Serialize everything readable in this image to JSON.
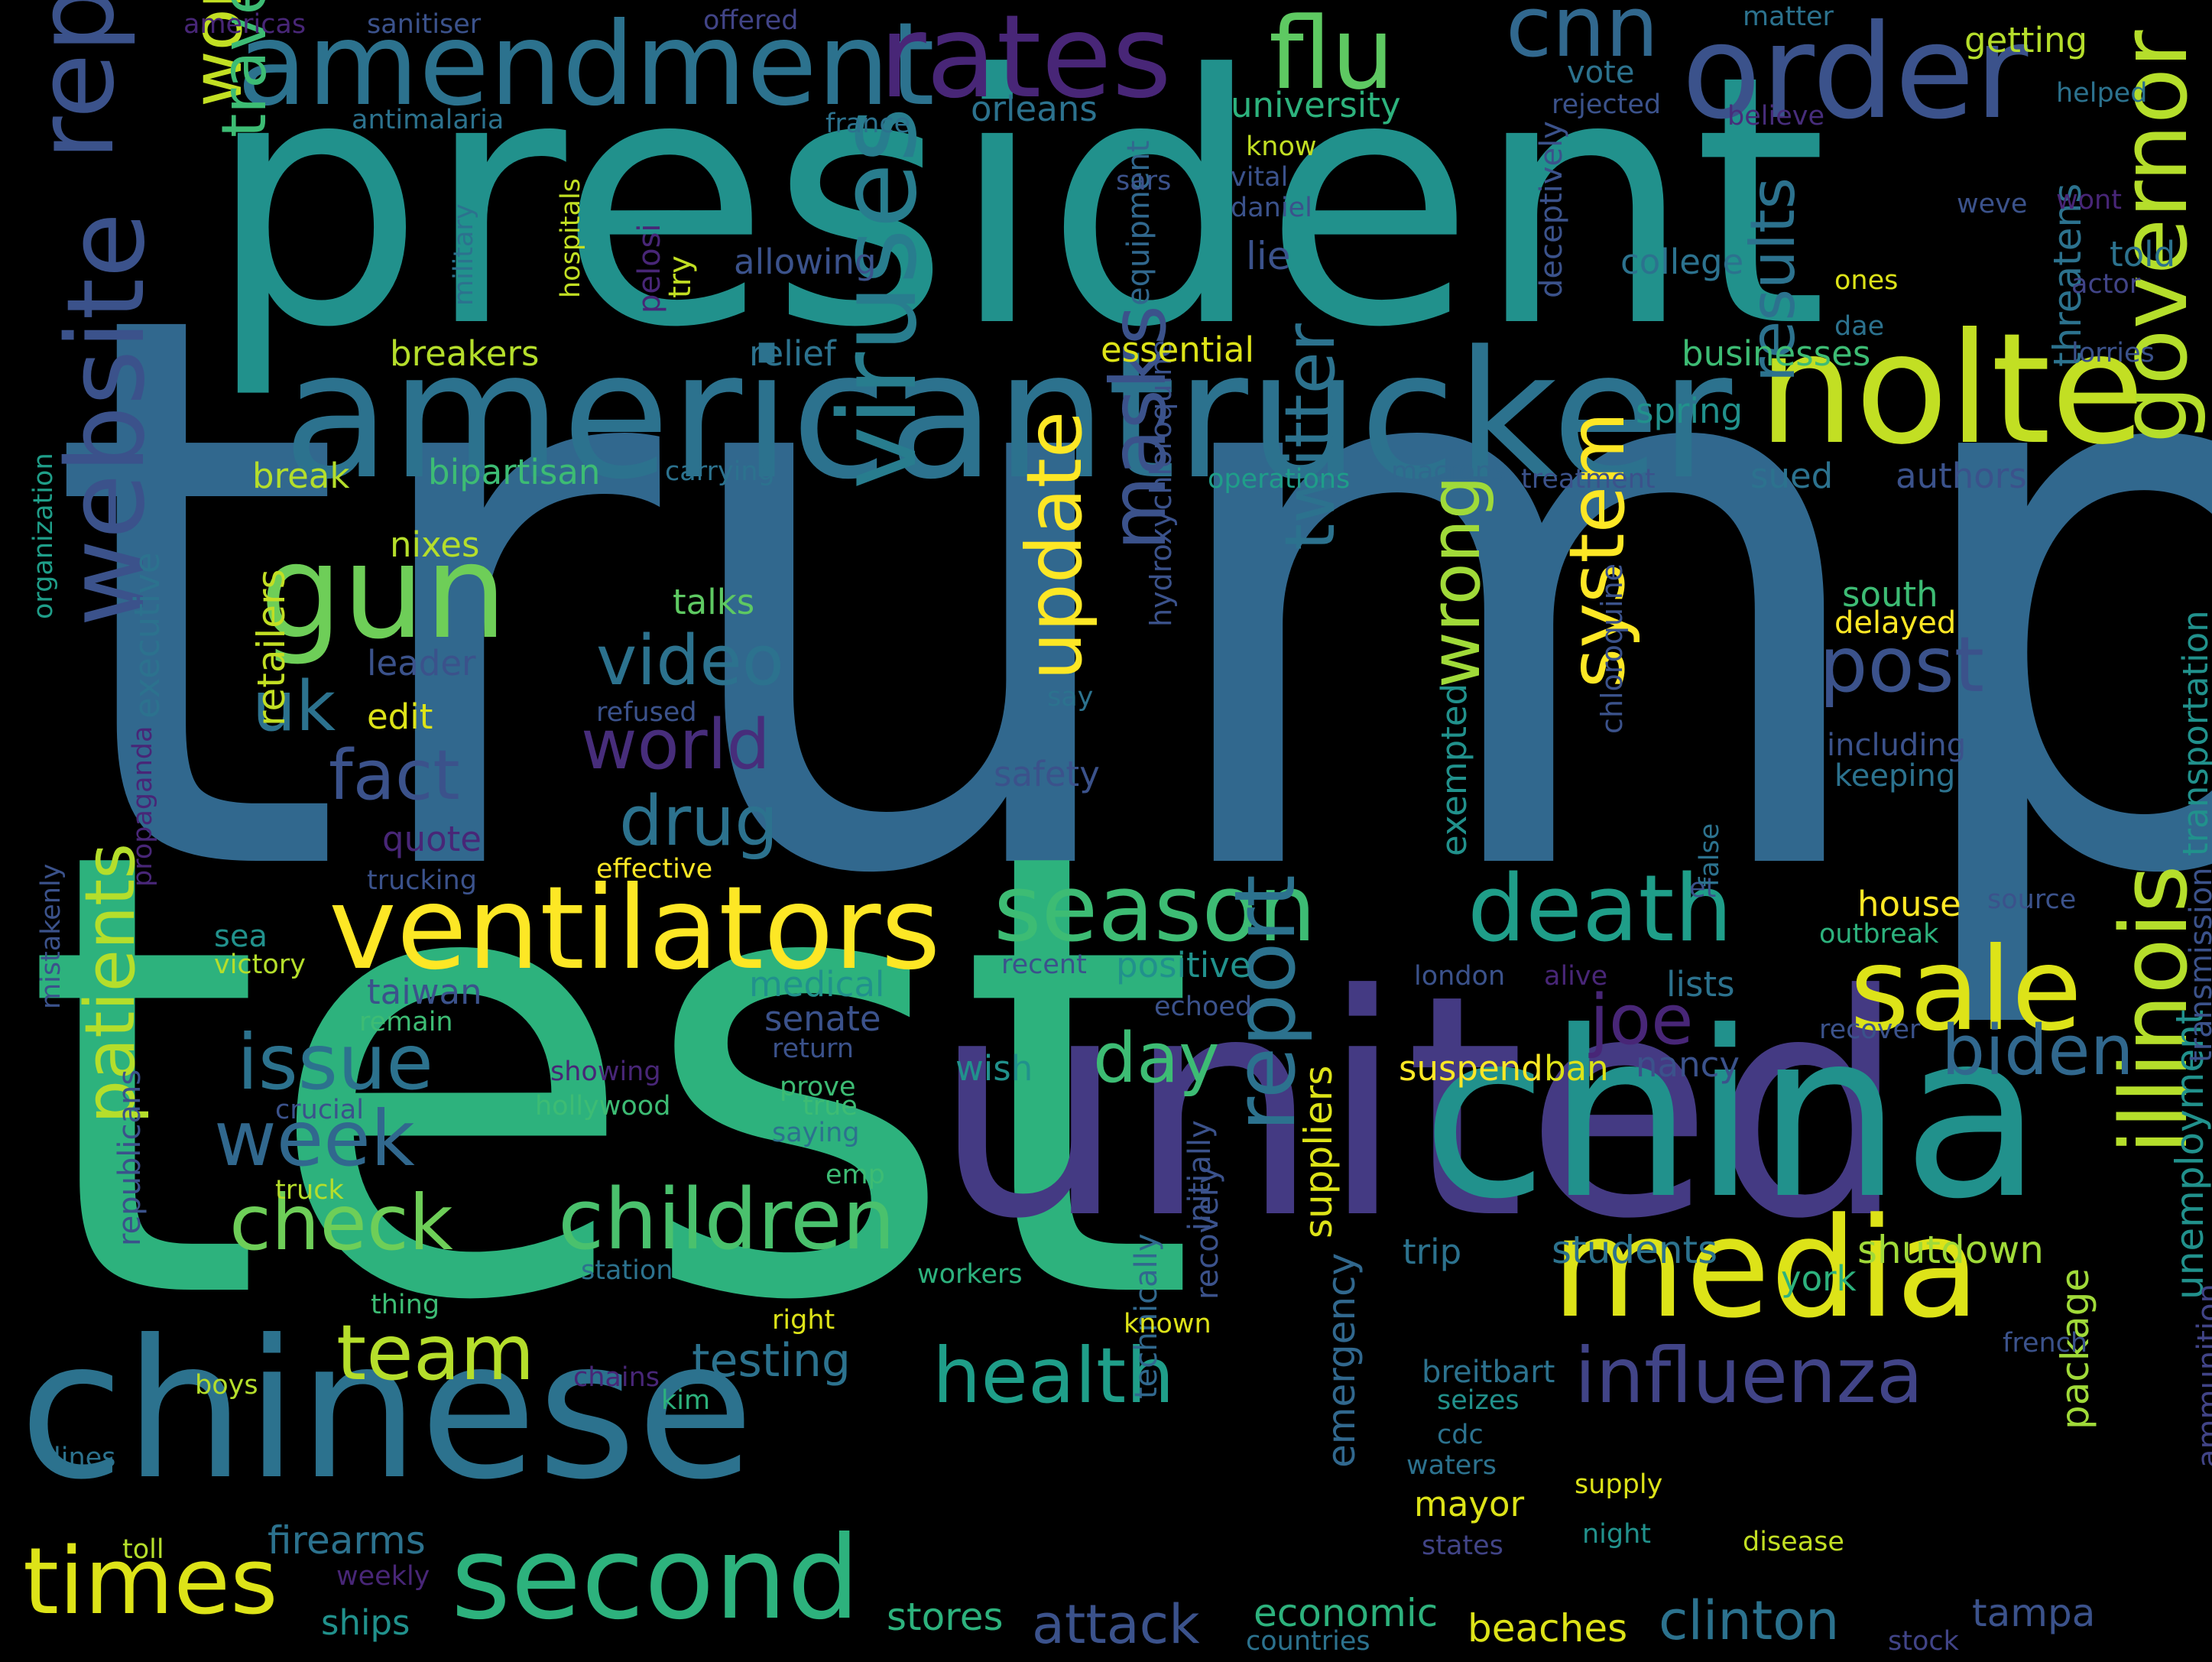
{
  "words": [
    {
      "t": "trump",
      "c": "#31688e"
    },
    {
      "t": "test",
      "c": "#2db27d"
    },
    {
      "t": "president",
      "c": "#21918c"
    },
    {
      "t": "united",
      "c": "#443a83"
    },
    {
      "t": "chinese",
      "c": "#2c728e"
    },
    {
      "t": "china",
      "c": "#21918c"
    },
    {
      "t": "americantrucker",
      "c": "#2c728e"
    },
    {
      "t": "nolte",
      "c": "#c2df23"
    },
    {
      "t": "media",
      "c": "#dde318"
    },
    {
      "t": "order",
      "c": "#3b528b"
    },
    {
      "t": "amendment",
      "c": "#2c728e"
    },
    {
      "t": "rates",
      "c": "#482677"
    },
    {
      "t": "flu",
      "c": "#5ec962"
    },
    {
      "t": "cnn",
      "c": "#31688e"
    },
    {
      "t": "reported",
      "c": "#3b528b"
    },
    {
      "t": "website",
      "c": "#3b528b"
    },
    {
      "t": "gun",
      "c": "#6ece58"
    },
    {
      "t": "ventilators",
      "c": "#fde725"
    },
    {
      "t": "season",
      "c": "#3dbc74"
    },
    {
      "t": "sale",
      "c": "#dde318"
    },
    {
      "t": "death",
      "c": "#1f9e89"
    },
    {
      "t": "viruses",
      "c": "#287d8e"
    },
    {
      "t": "governor",
      "c": "#b5de2b"
    },
    {
      "t": "illinois",
      "c": "#b5de2b"
    },
    {
      "t": "children",
      "c": "#4ac16d"
    },
    {
      "t": "second",
      "c": "#2db27d"
    },
    {
      "t": "times",
      "c": "#dde318"
    },
    {
      "t": "influenza",
      "c": "#414487"
    },
    {
      "t": "health",
      "c": "#1f9e89"
    },
    {
      "t": "team",
      "c": "#b5de2b"
    },
    {
      "t": "check",
      "c": "#6ece58"
    },
    {
      "t": "week",
      "c": "#31688e"
    },
    {
      "t": "issue",
      "c": "#2c728e"
    },
    {
      "t": "report",
      "c": "#2c728e"
    },
    {
      "t": "update",
      "c": "#fde725"
    },
    {
      "t": "masks",
      "c": "#3b528b"
    },
    {
      "t": "twitter",
      "c": "#2c728e"
    },
    {
      "t": "system",
      "c": "#fde725"
    },
    {
      "t": "wrong",
      "c": "#a0da39"
    },
    {
      "t": "post",
      "c": "#3b528b"
    },
    {
      "t": "results",
      "c": "#2c728e"
    },
    {
      "t": "biden",
      "c": "#31688e"
    },
    {
      "t": "joe",
      "c": "#482677"
    },
    {
      "t": "world",
      "c": "#472d7b"
    },
    {
      "t": "video",
      "c": "#2c728e"
    },
    {
      "t": "drug",
      "c": "#2c728e"
    },
    {
      "t": "fact",
      "c": "#3b528b"
    },
    {
      "t": "uk",
      "c": "#2c728e"
    },
    {
      "t": "day",
      "c": "#3dbc74"
    },
    {
      "t": "patients",
      "c": "#b5de2b"
    },
    {
      "t": "working",
      "c": "#c2df23"
    },
    {
      "t": "travel",
      "c": "#3dbc74"
    },
    {
      "t": "testing",
      "c": "#2c728e"
    },
    {
      "t": "attack",
      "c": "#3b528b"
    },
    {
      "t": "clinton",
      "c": "#2c728e"
    },
    {
      "t": "firearms",
      "c": "#2c728e"
    },
    {
      "t": "stores",
      "c": "#2db27d"
    },
    {
      "t": "economic",
      "c": "#2db27d"
    },
    {
      "t": "beaches",
      "c": "#dde318"
    },
    {
      "t": "tampa",
      "c": "#3b528b"
    },
    {
      "t": "shutdown",
      "c": "#a0da39"
    },
    {
      "t": "students",
      "c": "#2c728e"
    },
    {
      "t": "package",
      "c": "#a0da39"
    },
    {
      "t": "suppliers",
      "c": "#dde318"
    },
    {
      "t": "emergency",
      "c": "#31688e"
    },
    {
      "t": "unemployment",
      "c": "#21918c"
    },
    {
      "t": "ammunition",
      "c": "#414487"
    },
    {
      "t": "transportation",
      "c": "#21918c"
    },
    {
      "t": "transmission",
      "c": "#3b528b"
    },
    {
      "t": "republicans",
      "c": "#3b528b"
    },
    {
      "t": "retailers",
      "c": "#c2df23"
    },
    {
      "t": "executive",
      "c": "#2c728e"
    },
    {
      "t": "organization",
      "c": "#1f9e89"
    },
    {
      "t": "mistakenly",
      "c": "#3b528b"
    },
    {
      "t": "propaganda",
      "c": "#482677"
    },
    {
      "t": "hydroxychloroquine",
      "c": "#3b528b"
    },
    {
      "t": "chloroquine",
      "c": "#3b528b"
    },
    {
      "t": "deceptively",
      "c": "#3b528b"
    },
    {
      "t": "equipment",
      "c": "#31688e"
    },
    {
      "t": "military",
      "c": "#2c728e"
    },
    {
      "t": "hospitals",
      "c": "#c2df23"
    },
    {
      "t": "pelosi",
      "c": "#482677"
    },
    {
      "t": "try",
      "c": "#c2df23"
    },
    {
      "t": "threatens",
      "c": "#2c728e"
    },
    {
      "t": "exempted",
      "c": "#21918c"
    },
    {
      "t": "technically",
      "c": "#31688e"
    },
    {
      "t": "initially",
      "c": "#3b528b"
    },
    {
      "t": "recovery",
      "c": "#3b528b"
    },
    {
      "t": "americas",
      "c": "#482677"
    },
    {
      "t": "sanitiser",
      "c": "#3b528b"
    },
    {
      "t": "offered",
      "c": "#414487"
    },
    {
      "t": "matter",
      "c": "#2c728e"
    },
    {
      "t": "getting",
      "c": "#b5de2b"
    },
    {
      "t": "helped",
      "c": "#2c728e"
    },
    {
      "t": "antimalaria",
      "c": "#2c728e"
    },
    {
      "t": "france",
      "c": "#2c728e"
    },
    {
      "t": "orleans",
      "c": "#2c728e"
    },
    {
      "t": "university",
      "c": "#2db27d"
    },
    {
      "t": "vote",
      "c": "#2c728e"
    },
    {
      "t": "rejected",
      "c": "#3b528b"
    },
    {
      "t": "believe",
      "c": "#472d7b"
    },
    {
      "t": "know",
      "c": "#c2df23"
    },
    {
      "t": "vital",
      "c": "#3b528b"
    },
    {
      "t": "daniel",
      "c": "#3b528b"
    },
    {
      "t": "sars",
      "c": "#3b528b"
    },
    {
      "t": "weve",
      "c": "#3b528b"
    },
    {
      "t": "wont",
      "c": "#482677"
    },
    {
      "t": "told",
      "c": "#2c728e"
    },
    {
      "t": "actor",
      "c": "#414487"
    },
    {
      "t": "ones",
      "c": "#dde318"
    },
    {
      "t": "dae",
      "c": "#2c728e"
    },
    {
      "t": "lorries",
      "c": "#3b528b"
    },
    {
      "t": "allowing",
      "c": "#3b528b"
    },
    {
      "t": "college",
      "c": "#2c728e"
    },
    {
      "t": "lie",
      "c": "#3b528b"
    },
    {
      "t": "relief",
      "c": "#2c728e"
    },
    {
      "t": "essential",
      "c": "#dde318"
    },
    {
      "t": "businesses",
      "c": "#3dbc74"
    },
    {
      "t": "spring",
      "c": "#21918c"
    },
    {
      "t": "breakers",
      "c": "#b5de2b"
    },
    {
      "t": "break",
      "c": "#b5de2b"
    },
    {
      "t": "bipartisan",
      "c": "#3dbc74"
    },
    {
      "t": "carrying",
      "c": "#2c728e"
    },
    {
      "t": "operations",
      "c": "#1f9e89"
    },
    {
      "t": "macrons",
      "c": "#31688e"
    },
    {
      "t": "treatment",
      "c": "#3b528b"
    },
    {
      "t": "sued",
      "c": "#2c728e"
    },
    {
      "t": "authors",
      "c": "#3b528b"
    },
    {
      "t": "nixes",
      "c": "#b5de2b"
    },
    {
      "t": "talks",
      "c": "#5ec962"
    },
    {
      "t": "south",
      "c": "#3dbc74"
    },
    {
      "t": "delayed",
      "c": "#fde725"
    },
    {
      "t": "leader",
      "c": "#3b528b"
    },
    {
      "t": "refused",
      "c": "#3b528b"
    },
    {
      "t": "edit",
      "c": "#dde318"
    },
    {
      "t": "say",
      "c": "#2c728e"
    },
    {
      "t": "safety",
      "c": "#3b528b"
    },
    {
      "t": "including",
      "c": "#3b528b"
    },
    {
      "t": "keeping",
      "c": "#2c728e"
    },
    {
      "t": "quote",
      "c": "#482677"
    },
    {
      "t": "effective",
      "c": "#fde725"
    },
    {
      "t": "trucking",
      "c": "#3b528b"
    },
    {
      "t": "et",
      "c": "#3b528b"
    },
    {
      "t": "false",
      "c": "#2c728e"
    },
    {
      "t": "house",
      "c": "#fde725"
    },
    {
      "t": "source",
      "c": "#3b528b"
    },
    {
      "t": "outbreak",
      "c": "#2db27d"
    },
    {
      "t": "sea",
      "c": "#21918c"
    },
    {
      "t": "victory",
      "c": "#b5de2b"
    },
    {
      "t": "taiwan",
      "c": "#3b528b"
    },
    {
      "t": "remain",
      "c": "#3dbc74"
    },
    {
      "t": "medical",
      "c": "#21918c"
    },
    {
      "t": "recent",
      "c": "#3b528b"
    },
    {
      "t": "positive",
      "c": "#21918c"
    },
    {
      "t": "london",
      "c": "#3b528b"
    },
    {
      "t": "alive",
      "c": "#482677"
    },
    {
      "t": "lists",
      "c": "#2c728e"
    },
    {
      "t": "senate",
      "c": "#3b528b"
    },
    {
      "t": "echoed",
      "c": "#3b528b"
    },
    {
      "t": "recover",
      "c": "#3b528b"
    },
    {
      "t": "return",
      "c": "#3b528b"
    },
    {
      "t": "showing",
      "c": "#482677"
    },
    {
      "t": "wish",
      "c": "#21918c"
    },
    {
      "t": "suspend",
      "c": "#fde725"
    },
    {
      "t": "ban",
      "c": "#dde318"
    },
    {
      "t": "nancy",
      "c": "#3b528b"
    },
    {
      "t": "prove",
      "c": "#3dbc74"
    },
    {
      "t": "true",
      "c": "#3dbc74"
    },
    {
      "t": "hollywood",
      "c": "#3dbc74"
    },
    {
      "t": "crucial",
      "c": "#3b528b"
    },
    {
      "t": "saying",
      "c": "#2c728e"
    },
    {
      "t": "emp",
      "c": "#3dbc74"
    },
    {
      "t": "truck",
      "c": "#b5de2b"
    },
    {
      "t": "station",
      "c": "#2c728e"
    },
    {
      "t": "workers",
      "c": "#2db27d"
    },
    {
      "t": "trip",
      "c": "#2c728e"
    },
    {
      "t": "york",
      "c": "#2db27d"
    },
    {
      "t": "thing",
      "c": "#3dbc74"
    },
    {
      "t": "right",
      "c": "#dde318"
    },
    {
      "t": "known",
      "c": "#dde318"
    },
    {
      "t": "french",
      "c": "#3b528b"
    },
    {
      "t": "boys",
      "c": "#b5de2b"
    },
    {
      "t": "chains",
      "c": "#482677"
    },
    {
      "t": "kim",
      "c": "#2db27d"
    },
    {
      "t": "breitbart",
      "c": "#2c728e"
    },
    {
      "t": "seizes",
      "c": "#21918c"
    },
    {
      "t": "cdc",
      "c": "#2c728e"
    },
    {
      "t": "waters",
      "c": "#2c728e"
    },
    {
      "t": "lines",
      "c": "#2c728e"
    },
    {
      "t": "mayor",
      "c": "#dde318"
    },
    {
      "t": "supply",
      "c": "#dde318"
    },
    {
      "t": "night",
      "c": "#21918c"
    },
    {
      "t": "disease",
      "c": "#c2df23"
    },
    {
      "t": "toll",
      "c": "#b5de2b"
    },
    {
      "t": "weekly",
      "c": "#482677"
    },
    {
      "t": "states",
      "c": "#414487"
    },
    {
      "t": "ships",
      "c": "#21918c"
    },
    {
      "t": "countries",
      "c": "#2c728e"
    },
    {
      "t": "stock",
      "c": "#414487"
    }
  ]
}
